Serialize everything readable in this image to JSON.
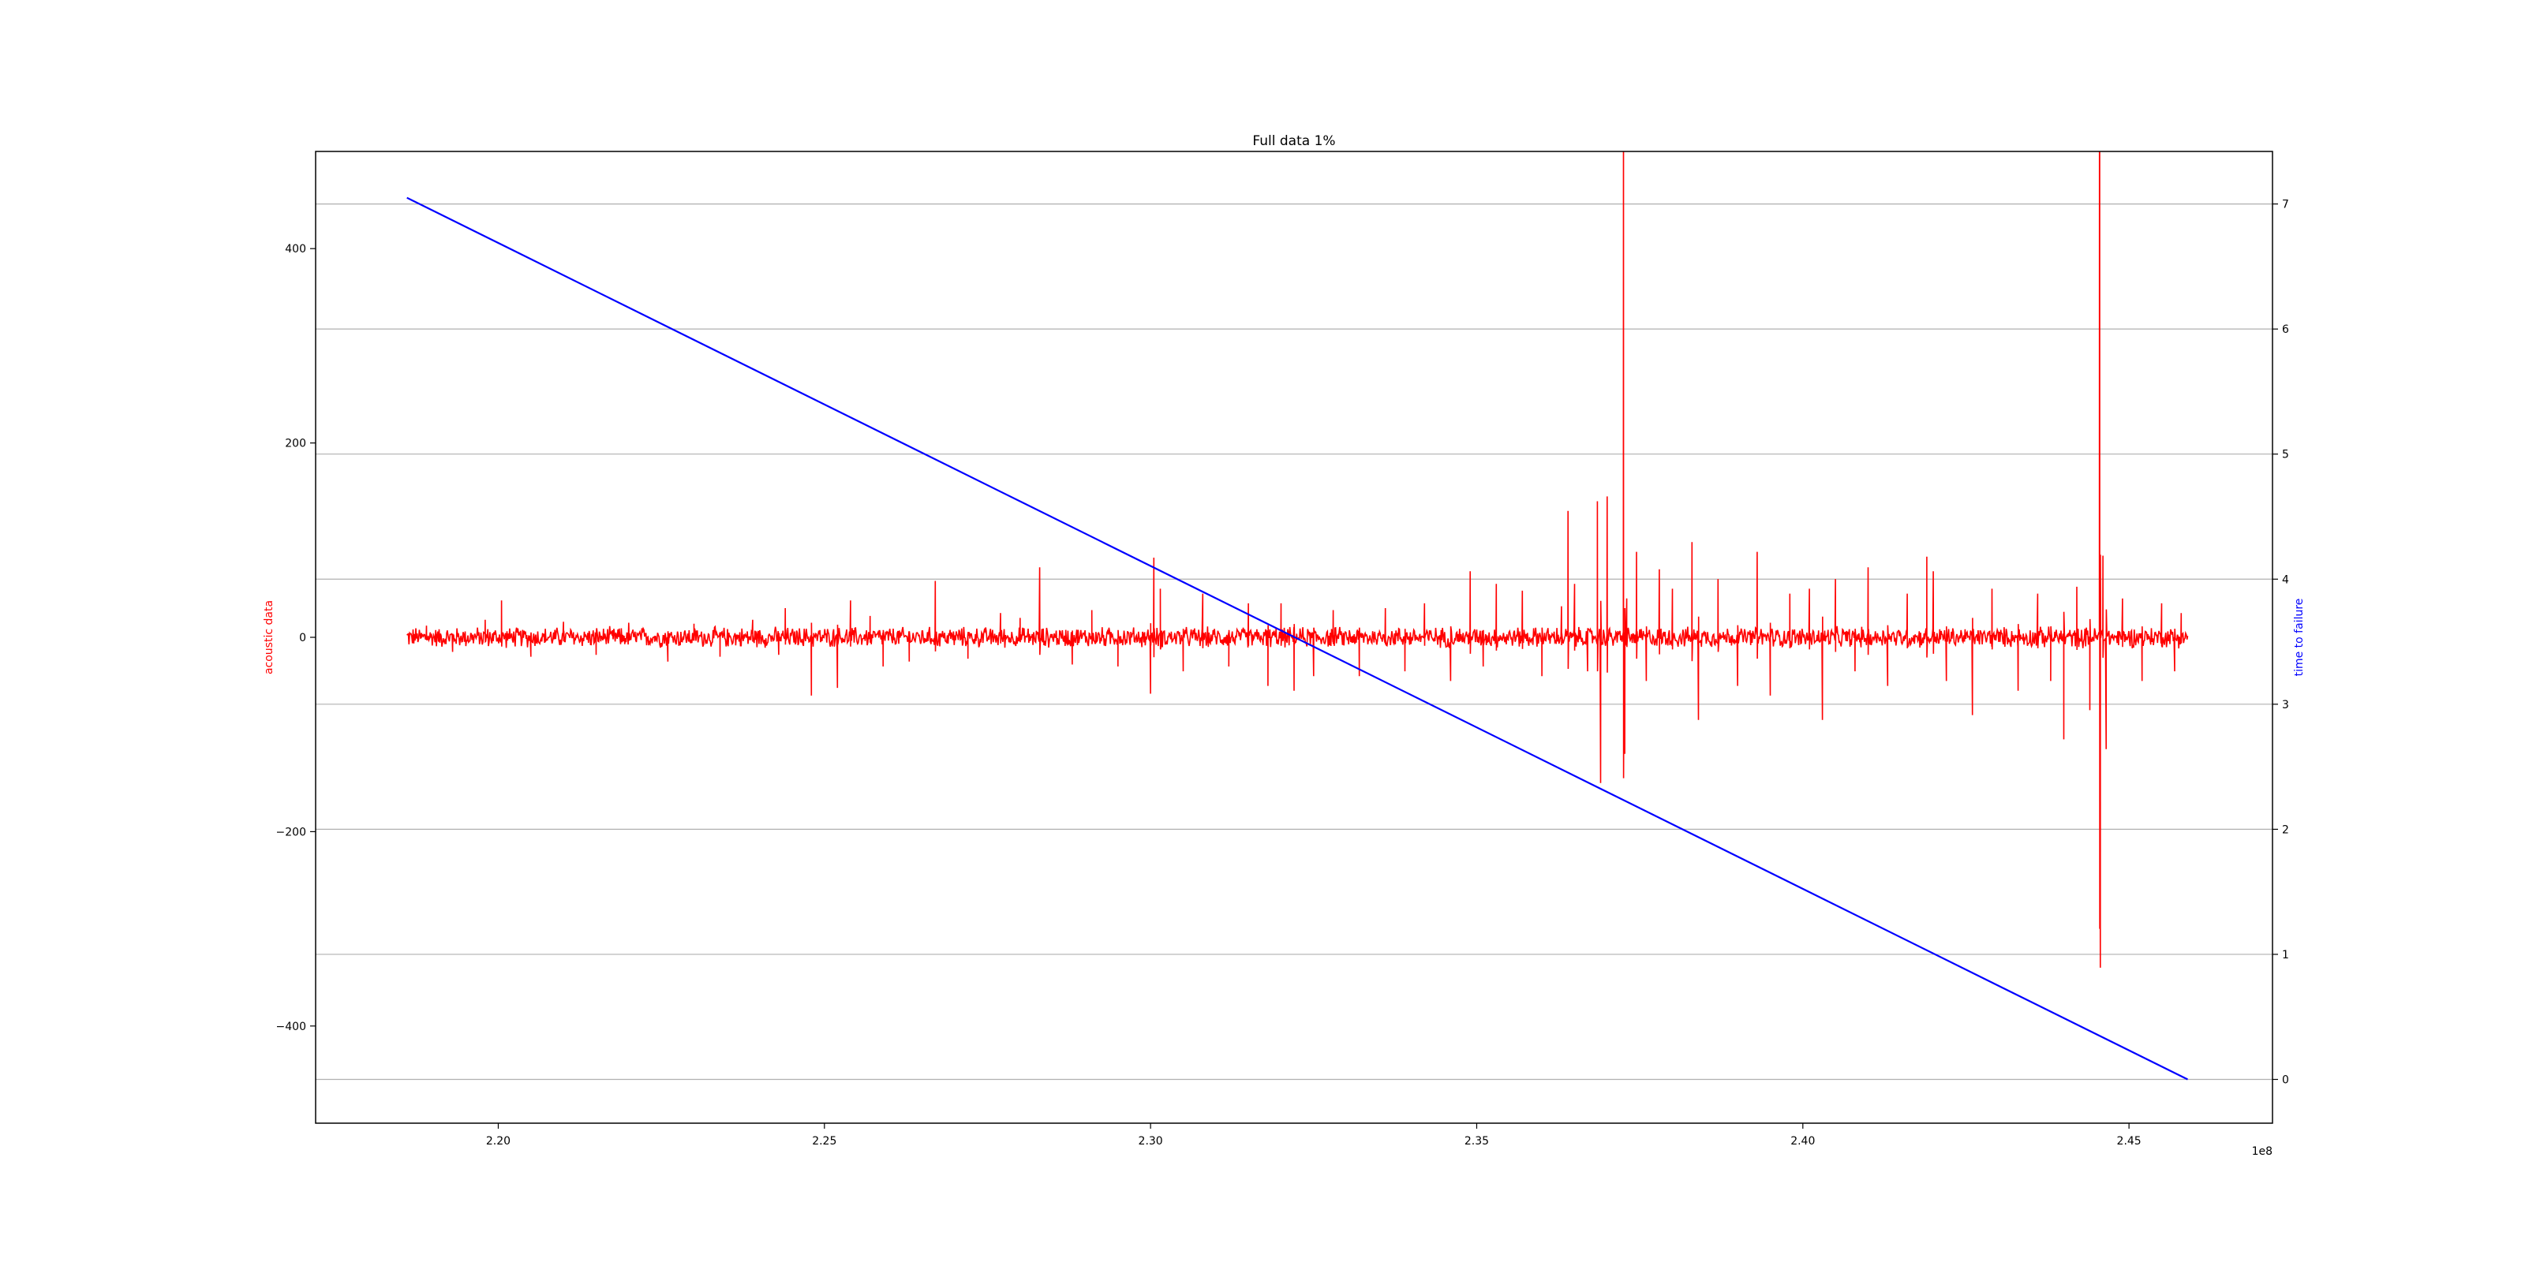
{
  "chart_data": {
    "type": "line",
    "title": "Full data 1%",
    "x_axis": {
      "range": [
        217200000,
        247200000
      ],
      "ticks": [
        220000000,
        225000000,
        230000000,
        235000000,
        240000000,
        245000000
      ],
      "tick_labels": [
        "2.20",
        "2.25",
        "2.30",
        "2.35",
        "2.40",
        "2.45"
      ],
      "offset_label": "1e8"
    },
    "y_axis_left": {
      "label": "acoustic data",
      "range": [
        -500,
        500
      ],
      "ticks": [
        -400,
        -200,
        0,
        200,
        400
      ],
      "tick_labels": [
        "−400",
        "−200",
        "0",
        "200",
        "400"
      ],
      "color": "#ff0000"
    },
    "y_axis_right": {
      "label": "time to failure",
      "range": [
        -0.35,
        7.42
      ],
      "ticks": [
        0,
        1,
        2,
        3,
        4,
        5,
        6,
        7
      ],
      "tick_labels": [
        "0",
        "1",
        "2",
        "3",
        "4",
        "5",
        "6",
        "7"
      ],
      "color": "#0000ff",
      "grid": true
    },
    "series": [
      {
        "axis": "left",
        "color": "#ff0000",
        "x_range": [
          218600000,
          245900000
        ],
        "noise_amplitude": 8,
        "spikes": [
          [
            218900000,
            12
          ],
          [
            219300000,
            -15
          ],
          [
            219800000,
            18
          ],
          [
            220050000,
            38
          ],
          [
            220500000,
            -20
          ],
          [
            221000000,
            16
          ],
          [
            221500000,
            -18
          ],
          [
            222000000,
            15
          ],
          [
            222600000,
            -25
          ],
          [
            223000000,
            14
          ],
          [
            223400000,
            -20
          ],
          [
            223900000,
            18
          ],
          [
            224300000,
            -18
          ],
          [
            224400000,
            30
          ],
          [
            224800000,
            -60
          ],
          [
            225200000,
            -52
          ],
          [
            225400000,
            38
          ],
          [
            225700000,
            22
          ],
          [
            225900000,
            -30
          ],
          [
            226300000,
            -25
          ],
          [
            226700000,
            58
          ],
          [
            227200000,
            -22
          ],
          [
            227700000,
            25
          ],
          [
            228000000,
            20
          ],
          [
            228300000,
            72
          ],
          [
            228800000,
            -28
          ],
          [
            229100000,
            28
          ],
          [
            229500000,
            -30
          ],
          [
            230000000,
            -58
          ],
          [
            230050000,
            82
          ],
          [
            230150000,
            50
          ],
          [
            230500000,
            -35
          ],
          [
            230800000,
            45
          ],
          [
            231200000,
            -30
          ],
          [
            231500000,
            35
          ],
          [
            231800000,
            -50
          ],
          [
            232000000,
            35
          ],
          [
            232200000,
            -55
          ],
          [
            232500000,
            -40
          ],
          [
            232800000,
            28
          ],
          [
            233200000,
            -40
          ],
          [
            233600000,
            30
          ],
          [
            233900000,
            -35
          ],
          [
            234200000,
            35
          ],
          [
            234600000,
            -45
          ],
          [
            234900000,
            68
          ],
          [
            235100000,
            -30
          ],
          [
            235300000,
            55
          ],
          [
            235700000,
            48
          ],
          [
            236000000,
            -40
          ],
          [
            236300000,
            32
          ],
          [
            236500000,
            55
          ],
          [
            236400000,
            130
          ],
          [
            236700000,
            -35
          ],
          [
            236850000,
            140
          ],
          [
            236900000,
            -150
          ],
          [
            237000000,
            145
          ],
          [
            237250000,
            580
          ],
          [
            237270000,
            -120
          ],
          [
            237300000,
            40
          ],
          [
            237450000,
            88
          ],
          [
            237600000,
            -45
          ],
          [
            237800000,
            70
          ],
          [
            238000000,
            50
          ],
          [
            238300000,
            98
          ],
          [
            238400000,
            -85
          ],
          [
            238700000,
            60
          ],
          [
            239000000,
            -50
          ],
          [
            239300000,
            88
          ],
          [
            239500000,
            -60
          ],
          [
            239800000,
            45
          ],
          [
            240100000,
            50
          ],
          [
            240300000,
            -85
          ],
          [
            240500000,
            60
          ],
          [
            240800000,
            -35
          ],
          [
            241000000,
            72
          ],
          [
            241300000,
            -50
          ],
          [
            241600000,
            45
          ],
          [
            241900000,
            83
          ],
          [
            242000000,
            68
          ],
          [
            242200000,
            -45
          ],
          [
            242600000,
            -80
          ],
          [
            242900000,
            50
          ],
          [
            243300000,
            -55
          ],
          [
            243600000,
            45
          ],
          [
            243800000,
            -45
          ],
          [
            244000000,
            -105
          ],
          [
            244200000,
            52
          ],
          [
            244400000,
            -75
          ],
          [
            244550000,
            1200
          ],
          [
            244560000,
            -340
          ],
          [
            244600000,
            84
          ],
          [
            244650000,
            -115
          ],
          [
            244900000,
            40
          ],
          [
            245200000,
            -45
          ],
          [
            245500000,
            35
          ],
          [
            245700000,
            -35
          ],
          [
            245800000,
            25
          ]
        ]
      },
      {
        "axis": "right",
        "color": "#0000ff",
        "x": [
          218600000,
          245900000
        ],
        "y": [
          7.05,
          0.0
        ]
      }
    ]
  }
}
